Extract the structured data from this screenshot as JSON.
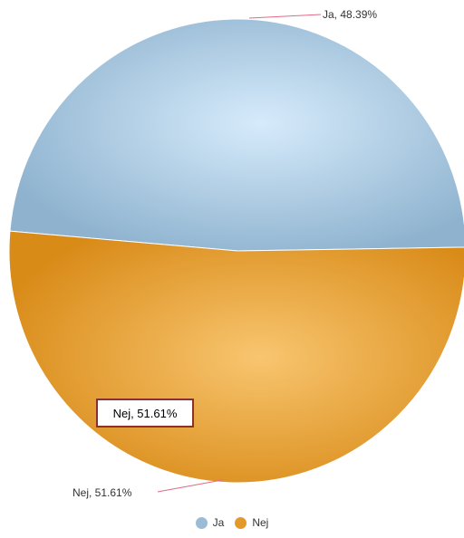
{
  "chart_data": {
    "type": "pie",
    "categories": [
      "Ja",
      "Nej"
    ],
    "values": [
      48.39,
      51.61
    ],
    "unit": "%",
    "data_labels": [
      "Ja, 48.39%",
      "Nej, 51.61%"
    ],
    "colors": [
      "#9bbcd6",
      "#e39a2c"
    ],
    "legend": {
      "placement": "bottom",
      "items": [
        "Ja",
        "Nej"
      ]
    },
    "tooltip": {
      "text": "Nej, 51.61%"
    }
  }
}
